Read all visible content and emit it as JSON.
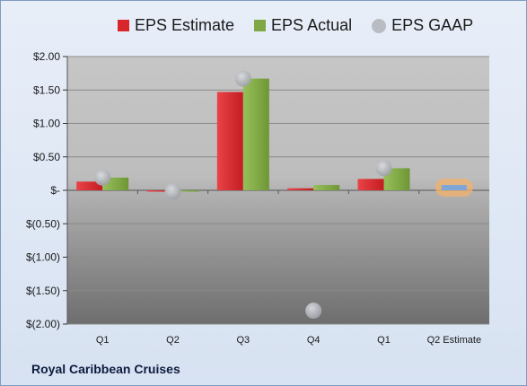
{
  "company_label": "Royal Caribbean Cruises",
  "legend": [
    {
      "label": "EPS Estimate",
      "color": "#d8262b",
      "shape": "square"
    },
    {
      "label": "EPS Actual",
      "color": "#7fa744",
      "shape": "square"
    },
    {
      "label": "EPS GAAP",
      "color": "#b9bcc2",
      "shape": "circle"
    }
  ],
  "chart_data": {
    "type": "bar",
    "categories": [
      "Q1",
      "Q2",
      "Q3",
      "Q4",
      "Q1",
      "Q2 Estimate"
    ],
    "series": [
      {
        "name": "EPS Estimate",
        "type": "bar",
        "color": "#d8262b",
        "values": [
          0.13,
          -0.02,
          1.47,
          0.03,
          0.17,
          null
        ]
      },
      {
        "name": "EPS Actual",
        "type": "bar",
        "color": "#7fa744",
        "values": [
          0.19,
          -0.02,
          1.67,
          0.08,
          0.33,
          null
        ]
      },
      {
        "name": "EPS GAAP",
        "type": "scatter",
        "color": "#b9bcc2",
        "values": [
          0.19,
          -0.02,
          1.67,
          -1.8,
          0.33,
          null
        ]
      },
      {
        "name": "Q2 Estimate",
        "type": "bar",
        "color": "#7da6d6",
        "highlight": "#f3b26b",
        "values": [
          null,
          null,
          null,
          null,
          null,
          0.08
        ]
      }
    ],
    "y_ticks": [
      2.0,
      1.5,
      1.0,
      0.5,
      0,
      -0.5,
      -1.0,
      -1.5,
      -2.0
    ],
    "y_tick_labels": [
      "$2.00",
      "$1.50",
      "$1.00",
      "$0.50",
      "$-",
      "$(0.50)",
      "$(1.00)",
      "$(1.50)",
      "$(2.00)"
    ],
    "ylim": [
      -2.0,
      2.0
    ],
    "grid": true
  }
}
